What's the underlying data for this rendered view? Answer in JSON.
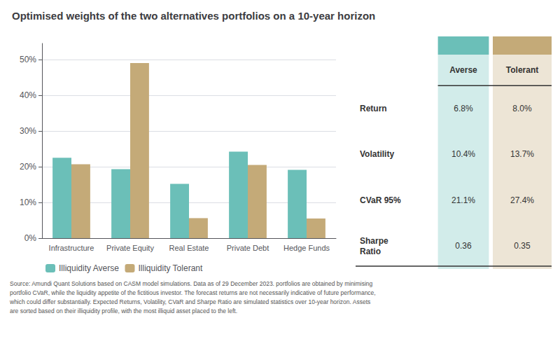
{
  "chart_data": {
    "type": "bar",
    "title": "Optimised weights of the two alternatives portfolios on a 10-year horizon",
    "categories": [
      "Infrastructure",
      "Private Equity",
      "Real Estate",
      "Private Debt",
      "Hedge Funds"
    ],
    "series": [
      {
        "name": "Illiquidity Averse",
        "color": "#6bbfb8",
        "values": [
          0.225,
          0.193,
          0.152,
          0.242,
          0.191
        ]
      },
      {
        "name": "Illiquidity Tolerant",
        "color": "#c4aa78",
        "values": [
          0.207,
          0.49,
          0.056,
          0.205,
          0.055
        ]
      }
    ],
    "ylim": [
      0,
      0.545
    ],
    "yticks": [
      {
        "value": 0.0,
        "label": "0%"
      },
      {
        "value": 0.1,
        "label": "10%"
      },
      {
        "value": 0.2,
        "label": "20%"
      },
      {
        "value": 0.3,
        "label": "30%"
      },
      {
        "value": 0.4,
        "label": "40%"
      },
      {
        "value": 0.5,
        "label": "50%"
      }
    ],
    "grid": true,
    "legend": "bottom",
    "table": {
      "columns": [
        "Averse",
        "Tolerant"
      ],
      "rows": [
        {
          "label": "Return",
          "values": [
            "6.8%",
            "8.0%"
          ]
        },
        {
          "label": "Volatility",
          "values": [
            "10.4%",
            "13.7%"
          ]
        },
        {
          "label": "CVaR 95%",
          "values": [
            "21.1%",
            "27.4%"
          ]
        },
        {
          "label": "Sharpe\nRatio",
          "values": [
            "0.36",
            "0.35"
          ]
        }
      ]
    },
    "annotations": [
      "Source: Amundi Quant Solutions based on CASM model simulations. Data as of 29 December 2023. portfolios are obtained by minimising\nportfolio CVaR, while the liquidity appetite of the fictitious investor. The forecast returns are not necessarily indicative of future performance,\nwhich could differ substantially. Expected Returns, Volatility, CVaR and Sharpe Ratio are simulated statistics over 10-year horizon. Assets\nare sorted based on their illiquidity profile, with the most illiquid asset placed to the left."
    ]
  }
}
